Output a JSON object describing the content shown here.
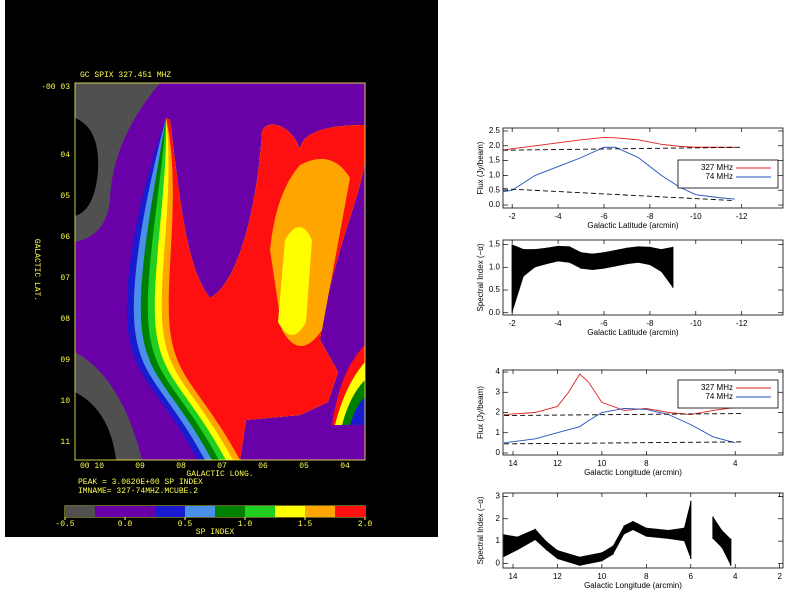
{
  "chart_data": [
    {
      "type": "contour",
      "title": "GC SPIX  327.451 MHZ",
      "xlabel": "GALACTIC LONG.",
      "ylabel": "GALACTIC LAT.",
      "xtick_labels": [
        "00 10",
        "09",
        "08",
        "07",
        "06",
        "05",
        "04"
      ],
      "ytick_labels": [
        "-00 03",
        "04",
        "05",
        "06",
        "07",
        "08",
        "09",
        "10",
        "11"
      ],
      "notes": [
        "PEAK = 3.0620E+00 SP INDEX",
        "IMNAME= 327-74MHZ.MCUBE.2"
      ],
      "colorbar": {
        "label": "SP INDEX",
        "levels": [
          -0.5,
          -0.25,
          0,
          0.25,
          0.5,
          0.75,
          1,
          1.25,
          1.5,
          1.75,
          2
        ],
        "colors": [
          "#505050",
          "#6a00a8",
          "#6a00a8",
          "#1a1ad0",
          "#4a90e8",
          "#008000",
          "#20d020",
          "#ffff00",
          "#ffa500",
          "#ff1010"
        ],
        "ticks": [
          {
            "value": -0.5,
            "label": "-0.5"
          },
          {
            "value": 0,
            "label": "0.0"
          },
          {
            "value": 0.5,
            "label": "0.5"
          },
          {
            "value": 1,
            "label": "1.0"
          },
          {
            "value": 1.5,
            "label": "1.5"
          },
          {
            "value": 2,
            "label": "2.0"
          }
        ]
      }
    },
    {
      "type": "line",
      "xlabel": "Galactic Latitude (arcmin)",
      "ylabel": "Flux (Jy/beam)",
      "x": [
        -1.6,
        -2,
        -3,
        -4,
        -5,
        -6,
        -6.5,
        -7.5,
        -8.5,
        -9.3,
        -10,
        -11,
        -11.7
      ],
      "series": [
        {
          "name": "327 MHz",
          "color": "#e02020",
          "values": [
            1.85,
            1.9,
            2.0,
            2.1,
            2.2,
            2.28,
            2.27,
            2.2,
            2.05,
            1.98,
            1.95,
            1.95,
            1.95
          ]
        },
        {
          "name": "74 MHz",
          "color": "#2050c0",
          "values": [
            0.45,
            0.5,
            1.0,
            1.3,
            1.6,
            1.95,
            1.95,
            1.6,
            1.0,
            0.6,
            0.35,
            0.25,
            0.2
          ]
        },
        {
          "color": "#000000",
          "dash": true,
          "x": [
            -1.6,
            -12
          ],
          "values": [
            1.85,
            1.95
          ]
        },
        {
          "color": "#000000",
          "dash": true,
          "x": [
            -1.6,
            -11.7
          ],
          "values": [
            0.55,
            0.15
          ]
        }
      ],
      "xlim": [
        -1.6,
        -13.8
      ],
      "ylim": [
        -0.1,
        2.6
      ],
      "xticks": [
        -2,
        -4,
        -6,
        -8,
        -10,
        -12
      ],
      "yticks": [
        {
          "value": 0,
          "label": "0.0"
        },
        {
          "value": 0.5,
          "label": "0.5"
        },
        {
          "value": 1,
          "label": "1.0"
        },
        {
          "value": 1.5,
          "label": "1.5"
        },
        {
          "value": 2,
          "label": "2.0"
        },
        {
          "value": 2.5,
          "label": "2.5"
        }
      ],
      "legend": "center right"
    },
    {
      "type": "line",
      "xlabel": "Galactic Latitude (arcmin)",
      "ylabel": "Spectral Index (−α)",
      "x": [
        -2,
        -2.5,
        -3,
        -3.5,
        -4,
        -4.5,
        -5,
        -5.5,
        -6,
        -6.5,
        -7,
        -7.5,
        -8,
        -8.5,
        -9
      ],
      "series": [
        {
          "color": "#000000",
          "values": [
            0.75,
            1.1,
            1.2,
            1.25,
            1.3,
            1.28,
            1.15,
            1.12,
            1.15,
            1.2,
            1.25,
            1.28,
            1.25,
            1.15,
            1.0
          ],
          "errors": [
            0.75,
            0.3,
            0.2,
            0.18,
            0.17,
            0.18,
            0.18,
            0.18,
            0.18,
            0.18,
            0.18,
            0.18,
            0.2,
            0.25,
            0.45
          ]
        }
      ],
      "xlim": [
        -1.6,
        -13.8
      ],
      "ylim": [
        -0.05,
        1.6
      ],
      "xticks": [
        -2,
        -4,
        -6,
        -8,
        -10,
        -12
      ],
      "yticks": [
        {
          "value": 0,
          "label": "0.0"
        },
        {
          "value": 0.5,
          "label": "0.5"
        },
        {
          "value": 1,
          "label": "1.0"
        },
        {
          "value": 1.5,
          "label": "1.5"
        }
      ]
    },
    {
      "type": "line",
      "xlabel": "Galactic Longitude (arcmin)",
      "ylabel": "Flux (Jy/beam)",
      "x": [
        14.4,
        13,
        12,
        11.5,
        11,
        10.6,
        10,
        9,
        8,
        7,
        6,
        5,
        4
      ],
      "series": [
        {
          "name": "327 MHz",
          "color": "#e02020",
          "values": [
            1.9,
            2.0,
            2.3,
            3.0,
            3.9,
            3.5,
            2.5,
            2.1,
            2.2,
            2.0,
            1.9,
            2.1,
            2.25
          ]
        },
        {
          "name": "74 MHz",
          "color": "#2050c0",
          "values": [
            0.5,
            0.7,
            1.0,
            1.15,
            1.3,
            1.6,
            2.0,
            2.2,
            2.15,
            1.9,
            1.4,
            0.8,
            0.5
          ]
        },
        {
          "color": "#000000",
          "dash": true,
          "x": [
            14.4,
            3.6
          ],
          "values": [
            1.85,
            1.95
          ]
        },
        {
          "color": "#000000",
          "dash": true,
          "x": [
            14.4,
            3.6
          ],
          "values": [
            0.45,
            0.55
          ]
        }
      ],
      "xlim": [
        14.45,
        1.85
      ],
      "ylim": [
        -0.1,
        4.1
      ],
      "xticks": [
        14,
        12,
        10,
        8,
        4
      ],
      "yticks": [
        0,
        1,
        2,
        3,
        4
      ],
      "legend": "upper right"
    },
    {
      "type": "line",
      "xlabel": "Galactic Longitude (arcmin)",
      "ylabel": "Spectral Index (−α)",
      "x": [
        14.4,
        13.8,
        13,
        12.5,
        12,
        11,
        10,
        9.5,
        9,
        8.6,
        8,
        7,
        6.3,
        6,
        5.5,
        5,
        4.6,
        4.2
      ],
      "series": [
        {
          "color": "#000000",
          "values": [
            0.8,
            0.9,
            1.3,
            0.8,
            0.4,
            0.1,
            0.3,
            0.6,
            1.5,
            1.7,
            1.4,
            1.3,
            1.3,
            1.5,
            null,
            1.6,
            1.1,
            0.5
          ],
          "errors": [
            0.5,
            0.3,
            0.25,
            0.2,
            0.2,
            0.2,
            0.2,
            0.2,
            0.2,
            0.2,
            0.2,
            0.2,
            0.3,
            1.3,
            null,
            0.5,
            0.4,
            0.6
          ]
        }
      ],
      "xlim": [
        14.45,
        1.85
      ],
      "ylim": [
        -0.2,
        3.15
      ],
      "xticks": [
        14,
        12,
        10,
        8,
        6,
        4,
        2
      ],
      "yticks": [
        0,
        1,
        2,
        3
      ]
    }
  ]
}
